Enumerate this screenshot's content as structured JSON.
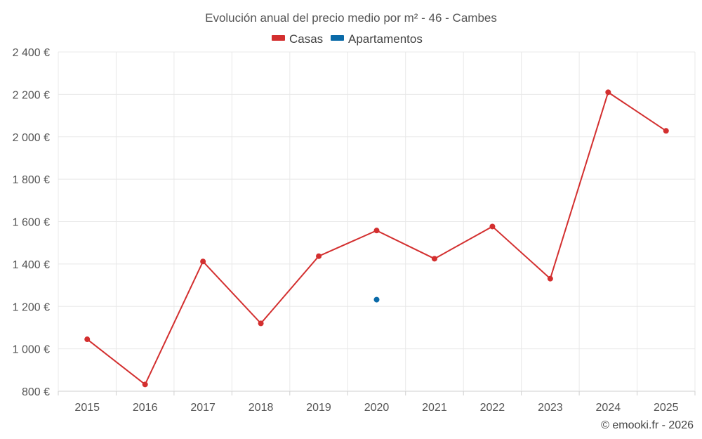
{
  "chart_data": {
    "type": "line",
    "title": "Evolución anual del precio medio por m² - 46 - Cambes",
    "categories": [
      "2015",
      "2016",
      "2017",
      "2018",
      "2019",
      "2020",
      "2021",
      "2022",
      "2023",
      "2024",
      "2025"
    ],
    "series": [
      {
        "name": "Casas",
        "color": "#d32f2f",
        "values": [
          1045,
          832,
          1412,
          1120,
          1437,
          1558,
          1425,
          1577,
          1331,
          2210,
          2028
        ]
      },
      {
        "name": "Apartamentos",
        "color": "#0a6aa8",
        "values": [
          null,
          null,
          null,
          null,
          null,
          1232,
          null,
          null,
          null,
          null,
          null
        ]
      }
    ],
    "ylim": [
      800,
      2400
    ],
    "yticks": [
      800,
      1000,
      1200,
      1400,
      1600,
      1800,
      2000,
      2200,
      2400
    ],
    "ytick_labels": [
      "800 €",
      "1 000 €",
      "1 200 €",
      "1 400 €",
      "1 600 €",
      "1 800 €",
      "2 000 €",
      "2 200 €",
      "2 400 €"
    ],
    "xlabel": "",
    "ylabel": "",
    "grid": true,
    "legend_position": "top-center"
  },
  "credit": "© emooki.fr - 2026"
}
